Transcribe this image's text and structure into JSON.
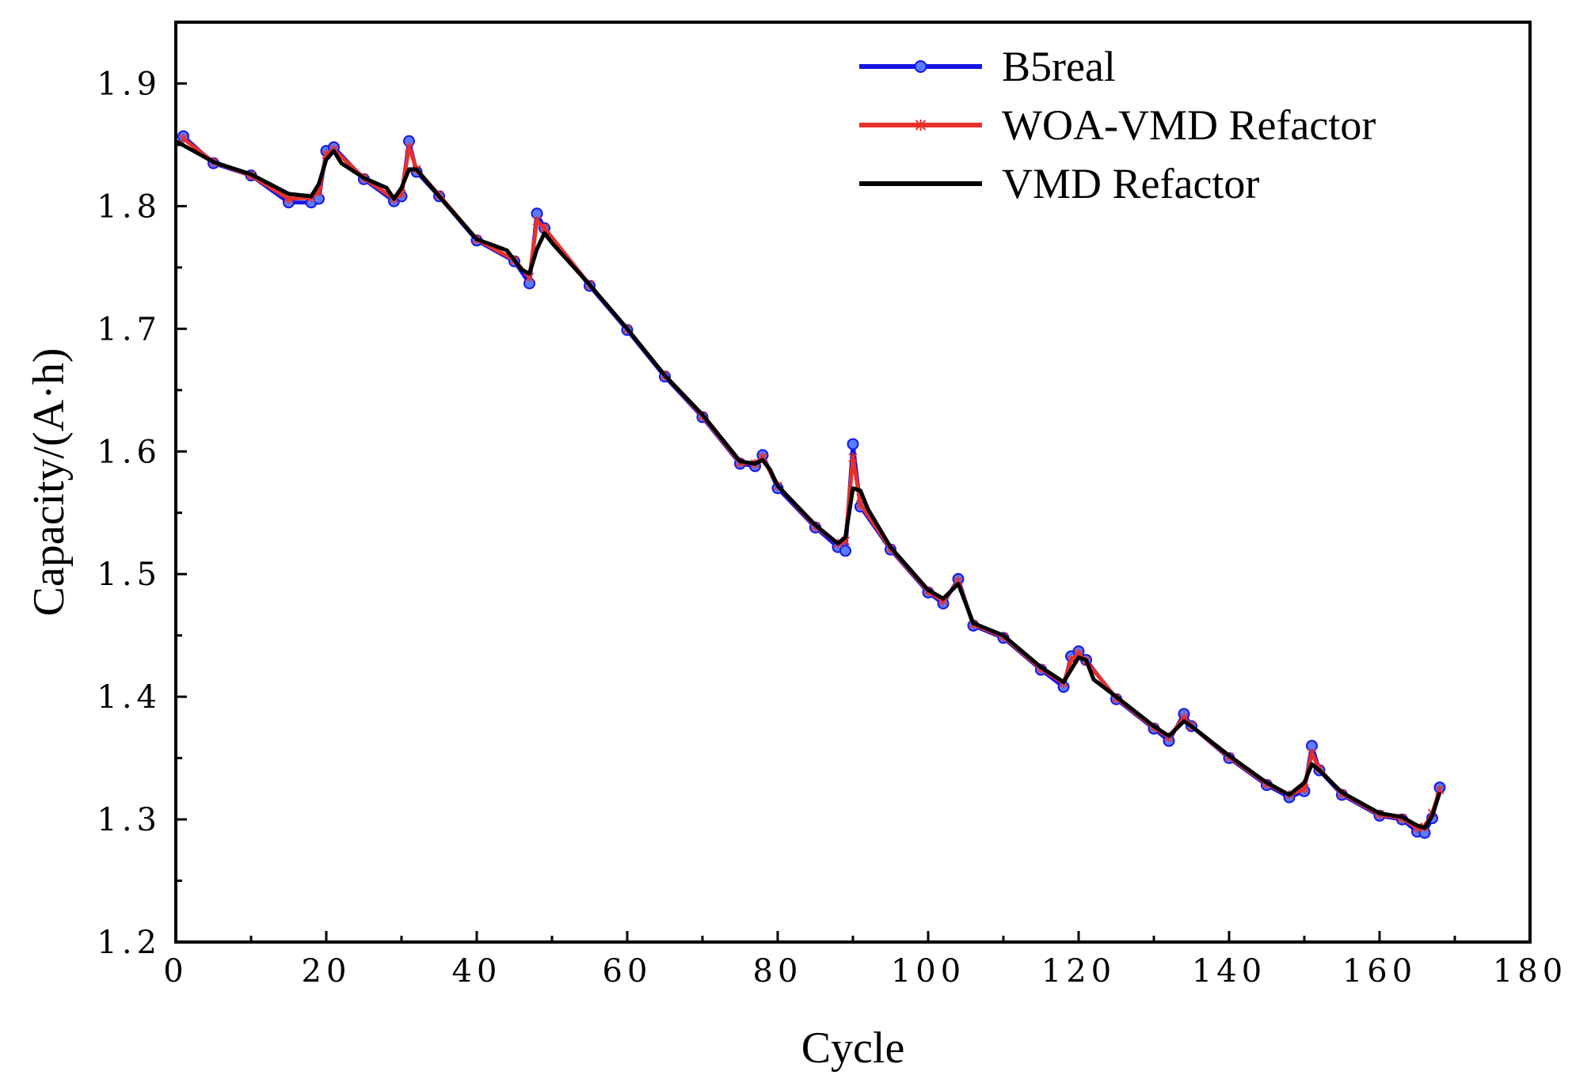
{
  "chart_data": {
    "type": "line",
    "xlabel": "Cycle",
    "ylabel": "Capacity/(A·h)",
    "xlim": [
      0,
      180
    ],
    "ylim": [
      1.2,
      1.95
    ],
    "xticks": [
      0,
      20,
      40,
      60,
      80,
      100,
      120,
      140,
      160,
      180
    ],
    "xtick_labels": [
      "0",
      "20",
      "40",
      "60",
      "80",
      "100",
      "120",
      "140",
      "160",
      "180"
    ],
    "yticks": [
      1.2,
      1.3,
      1.4,
      1.5,
      1.6,
      1.7,
      1.8,
      1.9
    ],
    "ytick_labels": [
      "1.2",
      "1.3",
      "1.4",
      "1.5",
      "1.6",
      "1.7",
      "1.8",
      "1.9"
    ],
    "grid": false,
    "legend_position": "top-right",
    "series": [
      {
        "name": "B5real",
        "color": "#1515e6",
        "marker": "circle",
        "x": [
          1,
          5,
          10,
          15,
          18,
          19,
          20,
          21,
          25,
          29,
          30,
          31,
          32,
          35,
          40,
          45,
          47,
          48,
          49,
          55,
          60,
          65,
          70,
          75,
          77,
          78,
          80,
          85,
          88,
          89,
          90,
          91,
          95,
          100,
          102,
          104,
          106,
          110,
          115,
          118,
          119,
          120,
          121,
          125,
          130,
          132,
          134,
          135,
          140,
          145,
          148,
          150,
          151,
          152,
          155,
          160,
          163,
          165,
          166,
          167,
          168
        ],
        "y": [
          1.857,
          1.835,
          1.825,
          1.803,
          1.803,
          1.806,
          1.845,
          1.848,
          1.822,
          1.804,
          1.808,
          1.853,
          1.828,
          1.808,
          1.772,
          1.755,
          1.737,
          1.794,
          1.782,
          1.735,
          1.699,
          1.661,
          1.628,
          1.59,
          1.588,
          1.597,
          1.57,
          1.538,
          1.522,
          1.519,
          1.606,
          1.555,
          1.52,
          1.485,
          1.476,
          1.496,
          1.458,
          1.448,
          1.422,
          1.408,
          1.433,
          1.437,
          1.43,
          1.398,
          1.374,
          1.364,
          1.386,
          1.376,
          1.35,
          1.328,
          1.318,
          1.323,
          1.36,
          1.34,
          1.32,
          1.303,
          1.3,
          1.29,
          1.289,
          1.301,
          1.326
        ]
      },
      {
        "name": "WOA-VMD Refactor",
        "color": "#e8302a",
        "marker": "x",
        "x": [
          1,
          5,
          10,
          15,
          18,
          19,
          20,
          21,
          25,
          29,
          30,
          31,
          32,
          35,
          40,
          45,
          47,
          48,
          49,
          55,
          60,
          65,
          70,
          75,
          77,
          78,
          80,
          85,
          88,
          89,
          90,
          91,
          95,
          100,
          102,
          104,
          106,
          110,
          115,
          118,
          119,
          120,
          121,
          125,
          130,
          132,
          134,
          135,
          140,
          145,
          148,
          150,
          151,
          152,
          155,
          160,
          163,
          165,
          166,
          167,
          168
        ],
        "y": [
          1.855,
          1.836,
          1.825,
          1.806,
          1.807,
          1.812,
          1.842,
          1.846,
          1.823,
          1.806,
          1.81,
          1.848,
          1.83,
          1.809,
          1.773,
          1.756,
          1.742,
          1.788,
          1.782,
          1.736,
          1.7,
          1.662,
          1.629,
          1.591,
          1.59,
          1.595,
          1.572,
          1.539,
          1.525,
          1.527,
          1.595,
          1.557,
          1.521,
          1.486,
          1.478,
          1.494,
          1.459,
          1.449,
          1.423,
          1.411,
          1.43,
          1.435,
          1.429,
          1.399,
          1.375,
          1.367,
          1.383,
          1.376,
          1.351,
          1.329,
          1.32,
          1.325,
          1.354,
          1.341,
          1.321,
          1.304,
          1.301,
          1.293,
          1.294,
          1.305,
          1.324
        ]
      },
      {
        "name": "VMD Refactor",
        "color": "#000000",
        "marker": "none",
        "x": [
          0,
          5,
          10,
          15,
          18,
          19,
          20,
          21,
          22,
          25,
          28,
          29,
          30,
          31,
          32,
          35,
          40,
          44,
          46,
          47,
          48,
          49,
          50,
          55,
          60,
          65,
          70,
          75,
          77,
          78,
          79,
          80,
          85,
          88,
          89,
          90,
          91,
          92,
          95,
          100,
          102,
          104,
          106,
          110,
          115,
          118,
          119,
          120,
          121,
          122,
          125,
          130,
          132,
          134,
          135,
          140,
          145,
          148,
          150,
          151,
          152,
          155,
          160,
          163,
          165,
          166,
          167,
          168
        ],
        "y": [
          1.853,
          1.836,
          1.826,
          1.81,
          1.808,
          1.818,
          1.838,
          1.845,
          1.835,
          1.823,
          1.815,
          1.806,
          1.815,
          1.83,
          1.83,
          1.808,
          1.773,
          1.764,
          1.748,
          1.745,
          1.765,
          1.778,
          1.77,
          1.736,
          1.7,
          1.662,
          1.63,
          1.592,
          1.59,
          1.593,
          1.585,
          1.572,
          1.54,
          1.525,
          1.53,
          1.57,
          1.568,
          1.553,
          1.522,
          1.487,
          1.48,
          1.492,
          1.46,
          1.45,
          1.424,
          1.412,
          1.422,
          1.432,
          1.43,
          1.414,
          1.4,
          1.376,
          1.368,
          1.38,
          1.376,
          1.352,
          1.33,
          1.32,
          1.33,
          1.345,
          1.34,
          1.322,
          1.305,
          1.302,
          1.295,
          1.293,
          1.303,
          1.322
        ]
      }
    ]
  }
}
